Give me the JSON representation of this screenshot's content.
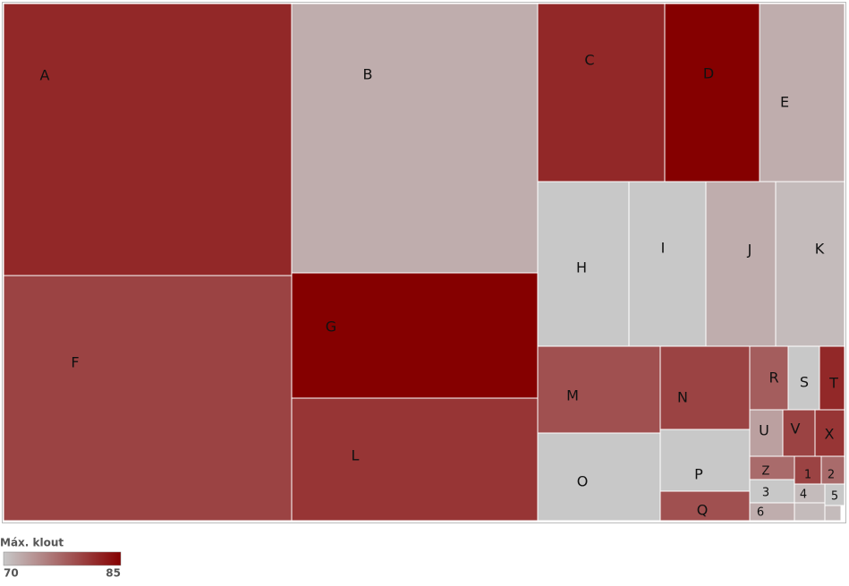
{
  "chart_data": {
    "type": "treemap",
    "color_scale": {
      "title": "Máx. klout",
      "ticks": [
        70,
        85
      ],
      "low_color": "#c8c8c8",
      "high_color": "#850000"
    },
    "nodes": [
      {
        "label": "A",
        "klout": 82
      },
      {
        "label": "B",
        "klout": 72
      },
      {
        "label": "C",
        "klout": 82
      },
      {
        "label": "D",
        "klout": 85
      },
      {
        "label": "E",
        "klout": 72
      },
      {
        "label": "F",
        "klout": 80
      },
      {
        "label": "G",
        "klout": 85
      },
      {
        "label": "L",
        "klout": 81
      },
      {
        "label": "H",
        "klout": 70
      },
      {
        "label": "I",
        "klout": 70
      },
      {
        "label": "J",
        "klout": 72
      },
      {
        "label": "K",
        "klout": 71
      },
      {
        "label": "M",
        "klout": 79
      },
      {
        "label": "O",
        "klout": 70
      },
      {
        "label": "N",
        "klout": 80
      },
      {
        "label": "P",
        "klout": 70
      },
      {
        "label": "Q",
        "klout": 79
      },
      {
        "label": "R",
        "klout": 78
      },
      {
        "label": "S",
        "klout": 70
      },
      {
        "label": "T",
        "klout": 82
      },
      {
        "label": "U",
        "klout": 73
      },
      {
        "label": "V",
        "klout": 80
      },
      {
        "label": "X",
        "klout": 81
      },
      {
        "label": "Z",
        "klout": 77
      },
      {
        "label": "1",
        "klout": 80
      },
      {
        "label": "2",
        "klout": 77
      },
      {
        "label": "3",
        "klout": 70
      },
      {
        "label": "4",
        "klout": 71
      },
      {
        "label": "5",
        "klout": 70
      },
      {
        "label": "6",
        "klout": 72
      },
      {
        "label": null,
        "klout": 71
      },
      {
        "label": null,
        "klout": 71
      }
    ]
  }
}
